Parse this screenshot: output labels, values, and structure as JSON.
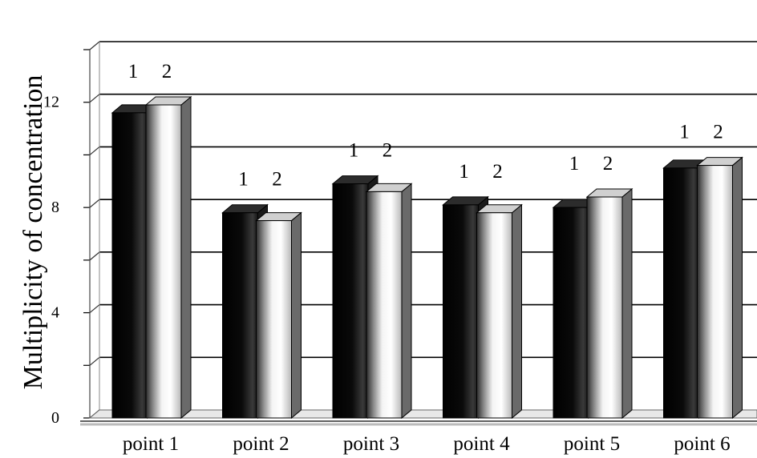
{
  "chart_data": {
    "type": "bar",
    "ylabel": "Multiplicity of concentration",
    "xlabel": "",
    "title": "",
    "categories": [
      "point 1",
      "point 2",
      "point 3",
      "point 4",
      "point 5",
      "point 6"
    ],
    "series": [
      {
        "label_text": "1",
        "values": [
          11.6,
          7.8,
          8.9,
          8.1,
          8.0,
          9.5
        ]
      },
      {
        "label_text": "2",
        "values": [
          11.9,
          7.5,
          8.6,
          7.8,
          8.4,
          9.6
        ]
      }
    ],
    "yticks": [
      "0",
      "",
      "4",
      "",
      "8",
      "",
      "12"
    ],
    "ylim": [
      0,
      14
    ],
    "grid": true,
    "legend": "none",
    "style": "3d-bar"
  }
}
